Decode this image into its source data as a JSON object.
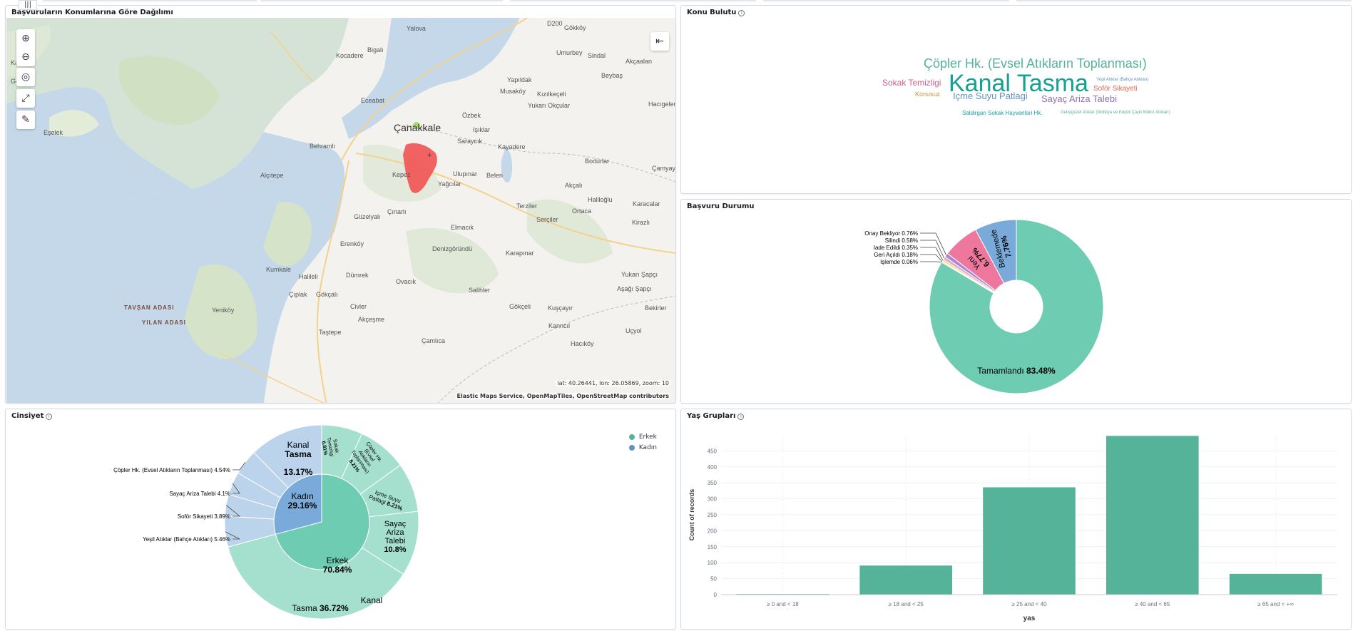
{
  "panels": {
    "map": {
      "title": "Başvuruların Konumlarına Göre Dağılımı",
      "coords": "lat: 40.26441, lon: 26.05869, zoom: 10",
      "attribution": "Elastic Maps Service, OpenMapTiles, OpenStreetMap contributors",
      "places": [
        {
          "label": "Yalova"
        },
        {
          "label": "Gökköy"
        },
        {
          "label": "Kocadere"
        },
        {
          "label": "Bigalı"
        },
        {
          "label": "Umurbey"
        },
        {
          "label": "Sindal"
        },
        {
          "label": "Akçaalan"
        },
        {
          "label": "Beybaş"
        },
        {
          "label": "Yapıldak"
        },
        {
          "label": "Musaköy"
        },
        {
          "label": "Kızılkeçeli"
        },
        {
          "label": "Eceabat"
        },
        {
          "label": "Yukarı Okçular"
        },
        {
          "label": "Hacıgelen"
        },
        {
          "label": "Özbek"
        },
        {
          "label": "Çanakkale"
        },
        {
          "label": "Işıklar"
        },
        {
          "label": "Saraycık"
        },
        {
          "label": "Kayadere"
        },
        {
          "label": "Eşelek"
        },
        {
          "label": "Behramlı"
        },
        {
          "label": "Bodurlar"
        },
        {
          "label": "Çamyayla"
        },
        {
          "label": "Alçıtepe"
        },
        {
          "label": "Kepez"
        },
        {
          "label": "Ulupınar"
        },
        {
          "label": "Belen"
        },
        {
          "label": "Yağcılar"
        },
        {
          "label": "Akçalı"
        },
        {
          "label": "Halilоğlu"
        },
        {
          "label": "Karacalar"
        },
        {
          "label": "Terziler"
        },
        {
          "label": "Ortaca"
        },
        {
          "label": "Çınarlı"
        },
        {
          "label": "Serçiler"
        },
        {
          "label": "Kirazlı"
        },
        {
          "label": "Güzelyalı"
        },
        {
          "label": "Elmacık"
        },
        {
          "label": "Erenköy"
        },
        {
          "label": "Denizgöründü"
        },
        {
          "label": "Karapınar"
        },
        {
          "label": "Kumkale"
        },
        {
          "label": "Halileli"
        },
        {
          "label": "Dümrek"
        },
        {
          "label": "Yukarı Şapçı"
        },
        {
          "label": "Ovacık"
        },
        {
          "label": "Aşağı Şapçı"
        },
        {
          "label": "Çıplak"
        },
        {
          "label": "Gökçalı"
        },
        {
          "label": "Salihler"
        },
        {
          "label": "TAVŞAN ADASI"
        },
        {
          "label": "Yeniköy"
        },
        {
          "label": "Civler"
        },
        {
          "label": "Gökçeli"
        },
        {
          "label": "Kuşçayır"
        },
        {
          "label": "Bekirler"
        },
        {
          "label": "YILAN ADASI"
        },
        {
          "label": "Akçeşme"
        },
        {
          "label": "Kanncıl"
        },
        {
          "label": "Uçyol"
        },
        {
          "label": "Taştepe"
        },
        {
          "label": "Çamlıca"
        },
        {
          "label": "Hacıköy"
        },
        {
          "label": "Gelibolu"
        },
        {
          "label": "Kalafat"
        },
        {
          "label": "D200"
        }
      ]
    },
    "cloud": {
      "title": "Konu Bulutu",
      "words": [
        {
          "text": "Çöpler Hk. (Evsel Atıkların Toplanması)",
          "color": "#54b399"
        },
        {
          "text": "Kanal Tasma",
          "color": "#16a091"
        },
        {
          "text": "Sokak Temizligi",
          "color": "#d36086"
        },
        {
          "text": "Yeşil Atıklar (Bahçe Atıkları)",
          "color": "#6092c0"
        },
        {
          "text": "Soför Sikayeti",
          "color": "#e7664c"
        },
        {
          "text": "Konusuz",
          "color": "#da8b45"
        },
        {
          "text": "Içme Suyu Patlagi",
          "color": "#6092c0"
        },
        {
          "text": "Sayaç Ariza Talebi",
          "color": "#9170b8"
        },
        {
          "text": "Saldirgan Sokak Hayvanlari Hk.",
          "color": "#16a0a5"
        },
        {
          "text": "Gelişigüzel Atıklar (Mobilya ve Küçük Çaplı Moloz Atıkları)",
          "color": "#54b399"
        }
      ]
    },
    "status": {
      "title": "Başvuru Durumu",
      "chart_data": {
        "type": "pie",
        "donut": true,
        "slices": [
          {
            "label": "Tamamlandı",
            "value": 83.48,
            "pct": "83.48%",
            "color": "#6dccb1"
          },
          {
            "label": "Beklemede",
            "value": 7.76,
            "pct": "7.76%",
            "color": "#79aad9"
          },
          {
            "label": "Yeni",
            "value": 6.77,
            "pct": "6.77%",
            "color": "#ee789d"
          },
          {
            "label": "Onay Bekliyor",
            "value": 0.76,
            "pct": "0.76%",
            "color": "#a987d1"
          },
          {
            "label": "Silindi",
            "value": 0.58,
            "pct": "0.58%",
            "color": "#e4a6c7"
          },
          {
            "label": "Iade Edildi",
            "value": 0.35,
            "pct": "0.35%",
            "color": "#f1d86f"
          },
          {
            "label": "Geri Açıldı",
            "value": 0.18,
            "pct": "0.18%",
            "color": "#d2c0a0"
          },
          {
            "label": "Işlemde",
            "value": 0.06,
            "pct": "0.06%",
            "color": "#f5a35c"
          }
        ]
      }
    },
    "gender": {
      "title": "Cinsiyet",
      "legend": [
        {
          "label": "Erkek",
          "color": "#54b399"
        },
        {
          "label": "Kadın",
          "color": "#6092c0"
        }
      ],
      "chart_data": {
        "type": "pie",
        "donut": true,
        "inner": [
          {
            "label": "Erkek",
            "value": 70.84,
            "pct": "70.84%",
            "color": "#6dccb1"
          },
          {
            "label": "Kadın",
            "value": 29.16,
            "pct": "29.16%",
            "color": "#79aad9"
          }
        ],
        "outer_erkek": [
          {
            "label": "Sokak Temizligi",
            "value": 6.81,
            "pct": "6.81%"
          },
          {
            "label": "Çöpler Hk. (Evsel Atıkların Toplanması)",
            "value": 8.21,
            "pct": "8.21%"
          },
          {
            "label": "Içme Suyu Patlagi",
            "value": 8.21,
            "pct": "8.21%"
          },
          {
            "label": "Sayaç Ariza Talebi",
            "value": 10.8,
            "pct": "10.8%"
          },
          {
            "label": "Kanal Tasma",
            "value": 36.72,
            "pct": "36.72%"
          }
        ],
        "outer_kadin": [
          {
            "label": "Yeşil Atıklar (Bahçe Atıkları)",
            "value": 5.46,
            "pct": "5.46%"
          },
          {
            "label": "Soför Sikayeti",
            "value": 3.89,
            "pct": "3.89%"
          },
          {
            "label": "Sayaç Ariza Talebi",
            "value": 4.1,
            "pct": "4.1%"
          },
          {
            "label": "Çöpler Hk. (Evsel Atıkların Toplanması)",
            "value": 4.54,
            "pct": "4.54%"
          },
          {
            "label": "Kanal Tasma",
            "value": 13.17,
            "pct": "13.17%"
          }
        ]
      }
    },
    "age": {
      "title": "Yaş Grupları",
      "chart_data": {
        "type": "bar",
        "categories": [
          "≥ 0 and < 18",
          "≥ 18 and < 25",
          "≥ 25 and < 40",
          "≥ 40 and < 65",
          "≥ 65 and < +∞"
        ],
        "values": [
          2,
          91,
          336,
          497,
          65
        ],
        "xlabel": "yas",
        "ylabel": "Count of records",
        "ylim": [
          0,
          500
        ],
        "yticks": [
          0,
          50,
          100,
          150,
          200,
          250,
          300,
          350,
          400,
          450
        ],
        "bar_color": "#54b399"
      }
    }
  }
}
